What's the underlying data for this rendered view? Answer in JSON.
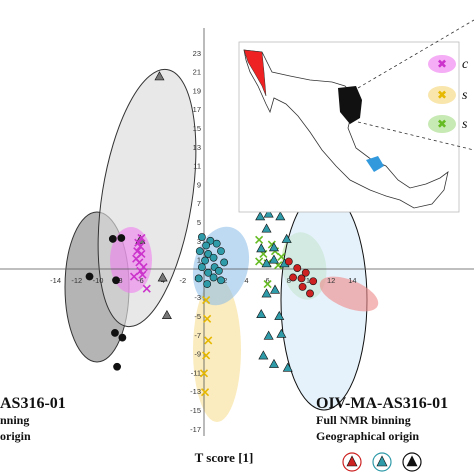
{
  "chart_data": {
    "type": "scatter",
    "xlabel": "T score [1]",
    "x_ticks": [
      -14,
      -12,
      -10,
      -8,
      -6,
      -4,
      -2,
      0,
      2,
      4,
      6,
      8,
      10,
      12,
      14
    ],
    "y_ticks": [
      23,
      21,
      19,
      17,
      15,
      13,
      11,
      9,
      7,
      5,
      3,
      1,
      -1,
      -3,
      -5,
      -7,
      -9,
      -11,
      -13,
      -15,
      -17
    ],
    "xlim": [
      -15,
      15
    ],
    "ylim": [
      -17.5,
      24
    ],
    "series": [
      {
        "marker": "circle",
        "color": "#111111",
        "points": [
          [
            -8.6,
            3.2
          ],
          [
            -7.8,
            3.3
          ],
          [
            -10.8,
            -0.8
          ],
          [
            -8.3,
            -1.2
          ],
          [
            -8.4,
            -6.8
          ],
          [
            -7.7,
            -7.3
          ],
          [
            -8.2,
            -10.4
          ]
        ]
      },
      {
        "marker": "triangle",
        "color": "#777777",
        "points": [
          [
            -4.2,
            20.5
          ],
          [
            -3.5,
            -4.9
          ],
          [
            -6.0,
            3.1
          ],
          [
            -3.9,
            -0.9
          ]
        ]
      },
      {
        "marker": "cross",
        "color": "#cc33cc",
        "points": [
          [
            -5.9,
            3.3
          ],
          [
            -6.2,
            2.8
          ],
          [
            -6.0,
            2.4
          ],
          [
            -6.3,
            1.9
          ],
          [
            -5.9,
            1.6
          ],
          [
            -6.4,
            1.1
          ],
          [
            -6.1,
            0.7
          ],
          [
            -5.7,
            0.2
          ],
          [
            -6.0,
            -0.2
          ],
          [
            -5.8,
            -0.6
          ],
          [
            -6.6,
            -0.8
          ],
          [
            -5.4,
            -2.1
          ]
        ]
      },
      {
        "marker": "circle",
        "color": "#2f9aa8",
        "points": [
          [
            -0.2,
            3.4
          ],
          [
            0.6,
            3.0
          ],
          [
            0.2,
            2.5
          ],
          [
            1.2,
            2.7
          ],
          [
            -0.4,
            1.9
          ],
          [
            0.4,
            1.6
          ],
          [
            1.6,
            1.9
          ],
          [
            0.9,
            1.2
          ],
          [
            0.1,
            0.9
          ],
          [
            1.9,
            0.7
          ],
          [
            -0.2,
            0.2
          ],
          [
            1.0,
            0.2
          ],
          [
            0.4,
            -0.4
          ],
          [
            -0.5,
            -1.0
          ],
          [
            1.6,
            -1.2
          ],
          [
            0.3,
            -1.6
          ],
          [
            0.9,
            -0.9
          ],
          [
            1.4,
            -0.2
          ]
        ]
      },
      {
        "marker": "cross",
        "color": "#e6b800",
        "points": [
          [
            0.3,
            -5.3
          ],
          [
            0.4,
            -7.6
          ],
          [
            0.2,
            -9.2
          ],
          [
            0.0,
            -11.1
          ],
          [
            0.1,
            -13.1
          ],
          [
            0.2,
            -3.3
          ]
        ]
      },
      {
        "marker": "cross",
        "color": "#66bb22",
        "points": [
          [
            5.2,
            3.1
          ],
          [
            6.4,
            2.6
          ],
          [
            5.6,
            1.6
          ],
          [
            6.7,
            1.9
          ],
          [
            7.3,
            1.3
          ],
          [
            5.2,
            0.8
          ],
          [
            6.0,
            0.6
          ],
          [
            7.0,
            0.4
          ],
          [
            6.0,
            -1.6
          ]
        ]
      },
      {
        "marker": "triangle",
        "color": "#2f9aa8",
        "points": [
          [
            5.3,
            5.6
          ],
          [
            6.1,
            5.9
          ],
          [
            7.2,
            5.6
          ],
          [
            5.9,
            4.3
          ],
          [
            5.4,
            2.2
          ],
          [
            6.6,
            2.3
          ],
          [
            7.8,
            3.2
          ],
          [
            5.9,
            0.6
          ],
          [
            6.6,
            1.0
          ],
          [
            7.6,
            0.6
          ],
          [
            5.9,
            -2.6
          ],
          [
            6.7,
            -2.2
          ],
          [
            5.4,
            -4.8
          ],
          [
            7.1,
            -5.0
          ],
          [
            6.1,
            -7.1
          ],
          [
            7.3,
            -6.9
          ],
          [
            5.6,
            -9.2
          ],
          [
            6.6,
            -10.1
          ],
          [
            7.9,
            -10.5
          ]
        ]
      },
      {
        "marker": "circle",
        "color": "#cc2222",
        "points": [
          [
            8.0,
            0.8
          ],
          [
            8.8,
            0.1
          ],
          [
            9.6,
            -0.4
          ],
          [
            9.2,
            -1.0
          ],
          [
            8.4,
            -0.9
          ],
          [
            9.3,
            -1.9
          ],
          [
            10.3,
            -1.3
          ],
          [
            10.0,
            -2.6
          ]
        ]
      }
    ]
  },
  "panel_left": {
    "line1": "AS316-01",
    "line2": "nning",
    "line3": "origin"
  },
  "panel_right": {
    "line1": "OIV-MA-AS316-01",
    "line2": "Full NMR binning",
    "line3": "Geographical origin"
  },
  "legend_letters": {
    "a": "c",
    "b": "s",
    "c": "s"
  },
  "colors": {
    "black_group": "#111111",
    "grey_group": "#777777",
    "magenta": "#cc33cc",
    "teal": "#2f9aa8",
    "yellow": "#e6b800",
    "green": "#66bb22",
    "red": "#cc2222"
  },
  "bottom_legend": [
    "red-triangle-icon",
    "teal-triangle-icon",
    "black-triangle-icon"
  ]
}
